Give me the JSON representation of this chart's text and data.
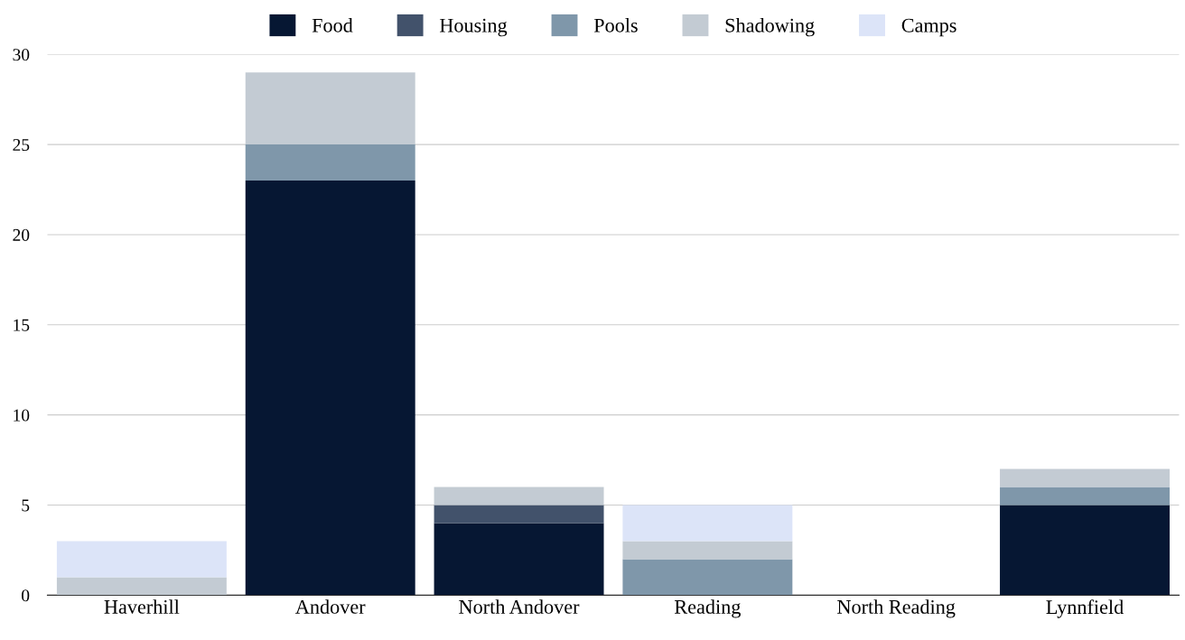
{
  "chart_data": {
    "type": "bar",
    "stacked": true,
    "categories": [
      "Haverhill",
      "Andover",
      "North Andover",
      "Reading",
      "North Reading",
      "Lynnfield"
    ],
    "series": [
      {
        "name": "Food",
        "color": "#061733",
        "values": [
          0,
          23,
          4,
          0,
          0,
          5
        ]
      },
      {
        "name": "Housing",
        "color": "#42526b",
        "values": [
          0,
          0,
          1,
          0,
          0,
          0
        ]
      },
      {
        "name": "Pools",
        "color": "#7f97aa",
        "values": [
          0,
          2,
          0,
          2,
          0,
          1
        ]
      },
      {
        "name": "Shadowing",
        "color": "#c3cbd3",
        "values": [
          1,
          4,
          1,
          1,
          0,
          1
        ]
      },
      {
        "name": "Camps",
        "color": "#dce4f8",
        "values": [
          2,
          0,
          0,
          2,
          0,
          0
        ]
      }
    ],
    "ylim": [
      0,
      30
    ],
    "yticks": [
      0,
      5,
      10,
      15,
      20,
      25,
      30
    ],
    "grid": "y",
    "legend": "top"
  }
}
